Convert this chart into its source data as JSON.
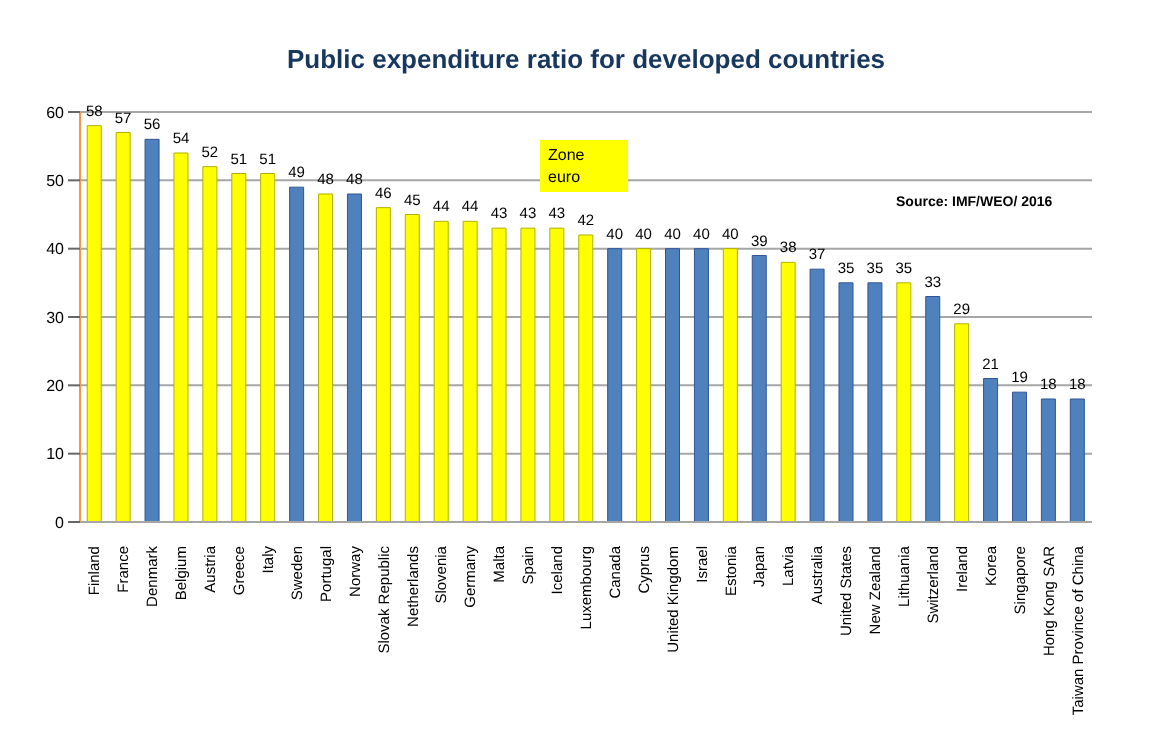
{
  "chart_data": {
    "type": "bar",
    "title": "Public expenditure ratio for developed countries",
    "categories": [
      "Finland",
      "France",
      "Denmark",
      "Belgium",
      "Austria",
      "Greece",
      "Italy",
      "Sweden",
      "Portugal",
      "Norway",
      "Slovak Republic",
      "Netherlands",
      "Slovenia",
      "Germany",
      "Malta",
      "Spain",
      "Iceland",
      "Luxembourg",
      "Canada",
      "Cyprus",
      "United Kingdom",
      "Israel",
      "Estonia",
      "Japan",
      "Latvia",
      "Australia",
      "United States",
      "New Zealand",
      "Lithuania",
      "Switzerland",
      "Ireland",
      "Korea",
      "Singapore",
      "Hong Kong SAR",
      "Taiwan Province of China"
    ],
    "values": [
      58,
      57,
      56,
      54,
      52,
      51,
      51,
      49,
      48,
      48,
      46,
      45,
      44,
      44,
      43,
      43,
      43,
      42,
      40,
      40,
      40,
      40,
      40,
      39,
      38,
      37,
      35,
      35,
      35,
      33,
      29,
      21,
      19,
      18,
      18
    ],
    "colors": [
      "#ffff00",
      "#ffff00",
      "#4f81bd",
      "#ffff00",
      "#ffff00",
      "#ffff00",
      "#ffff00",
      "#4f81bd",
      "#ffff00",
      "#4f81bd",
      "#ffff00",
      "#ffff00",
      "#ffff00",
      "#ffff00",
      "#ffff00",
      "#ffff00",
      "#ffff00",
      "#ffff00",
      "#4f81bd",
      "#ffff00",
      "#4f81bd",
      "#4f81bd",
      "#ffff00",
      "#4f81bd",
      "#ffff00",
      "#4f81bd",
      "#4f81bd",
      "#4f81bd",
      "#ffff00",
      "#4f81bd",
      "#ffff00",
      "#4f81bd",
      "#4f81bd",
      "#4f81bd",
      "#4f81bd"
    ],
    "ylim": [
      0,
      60
    ],
    "yticks": [
      0,
      10,
      20,
      30,
      40,
      50,
      60
    ],
    "grid": "y",
    "data_labels": true,
    "annotations": [
      "Zone euro",
      "Source: IMF/WEO/ 2016"
    ]
  }
}
